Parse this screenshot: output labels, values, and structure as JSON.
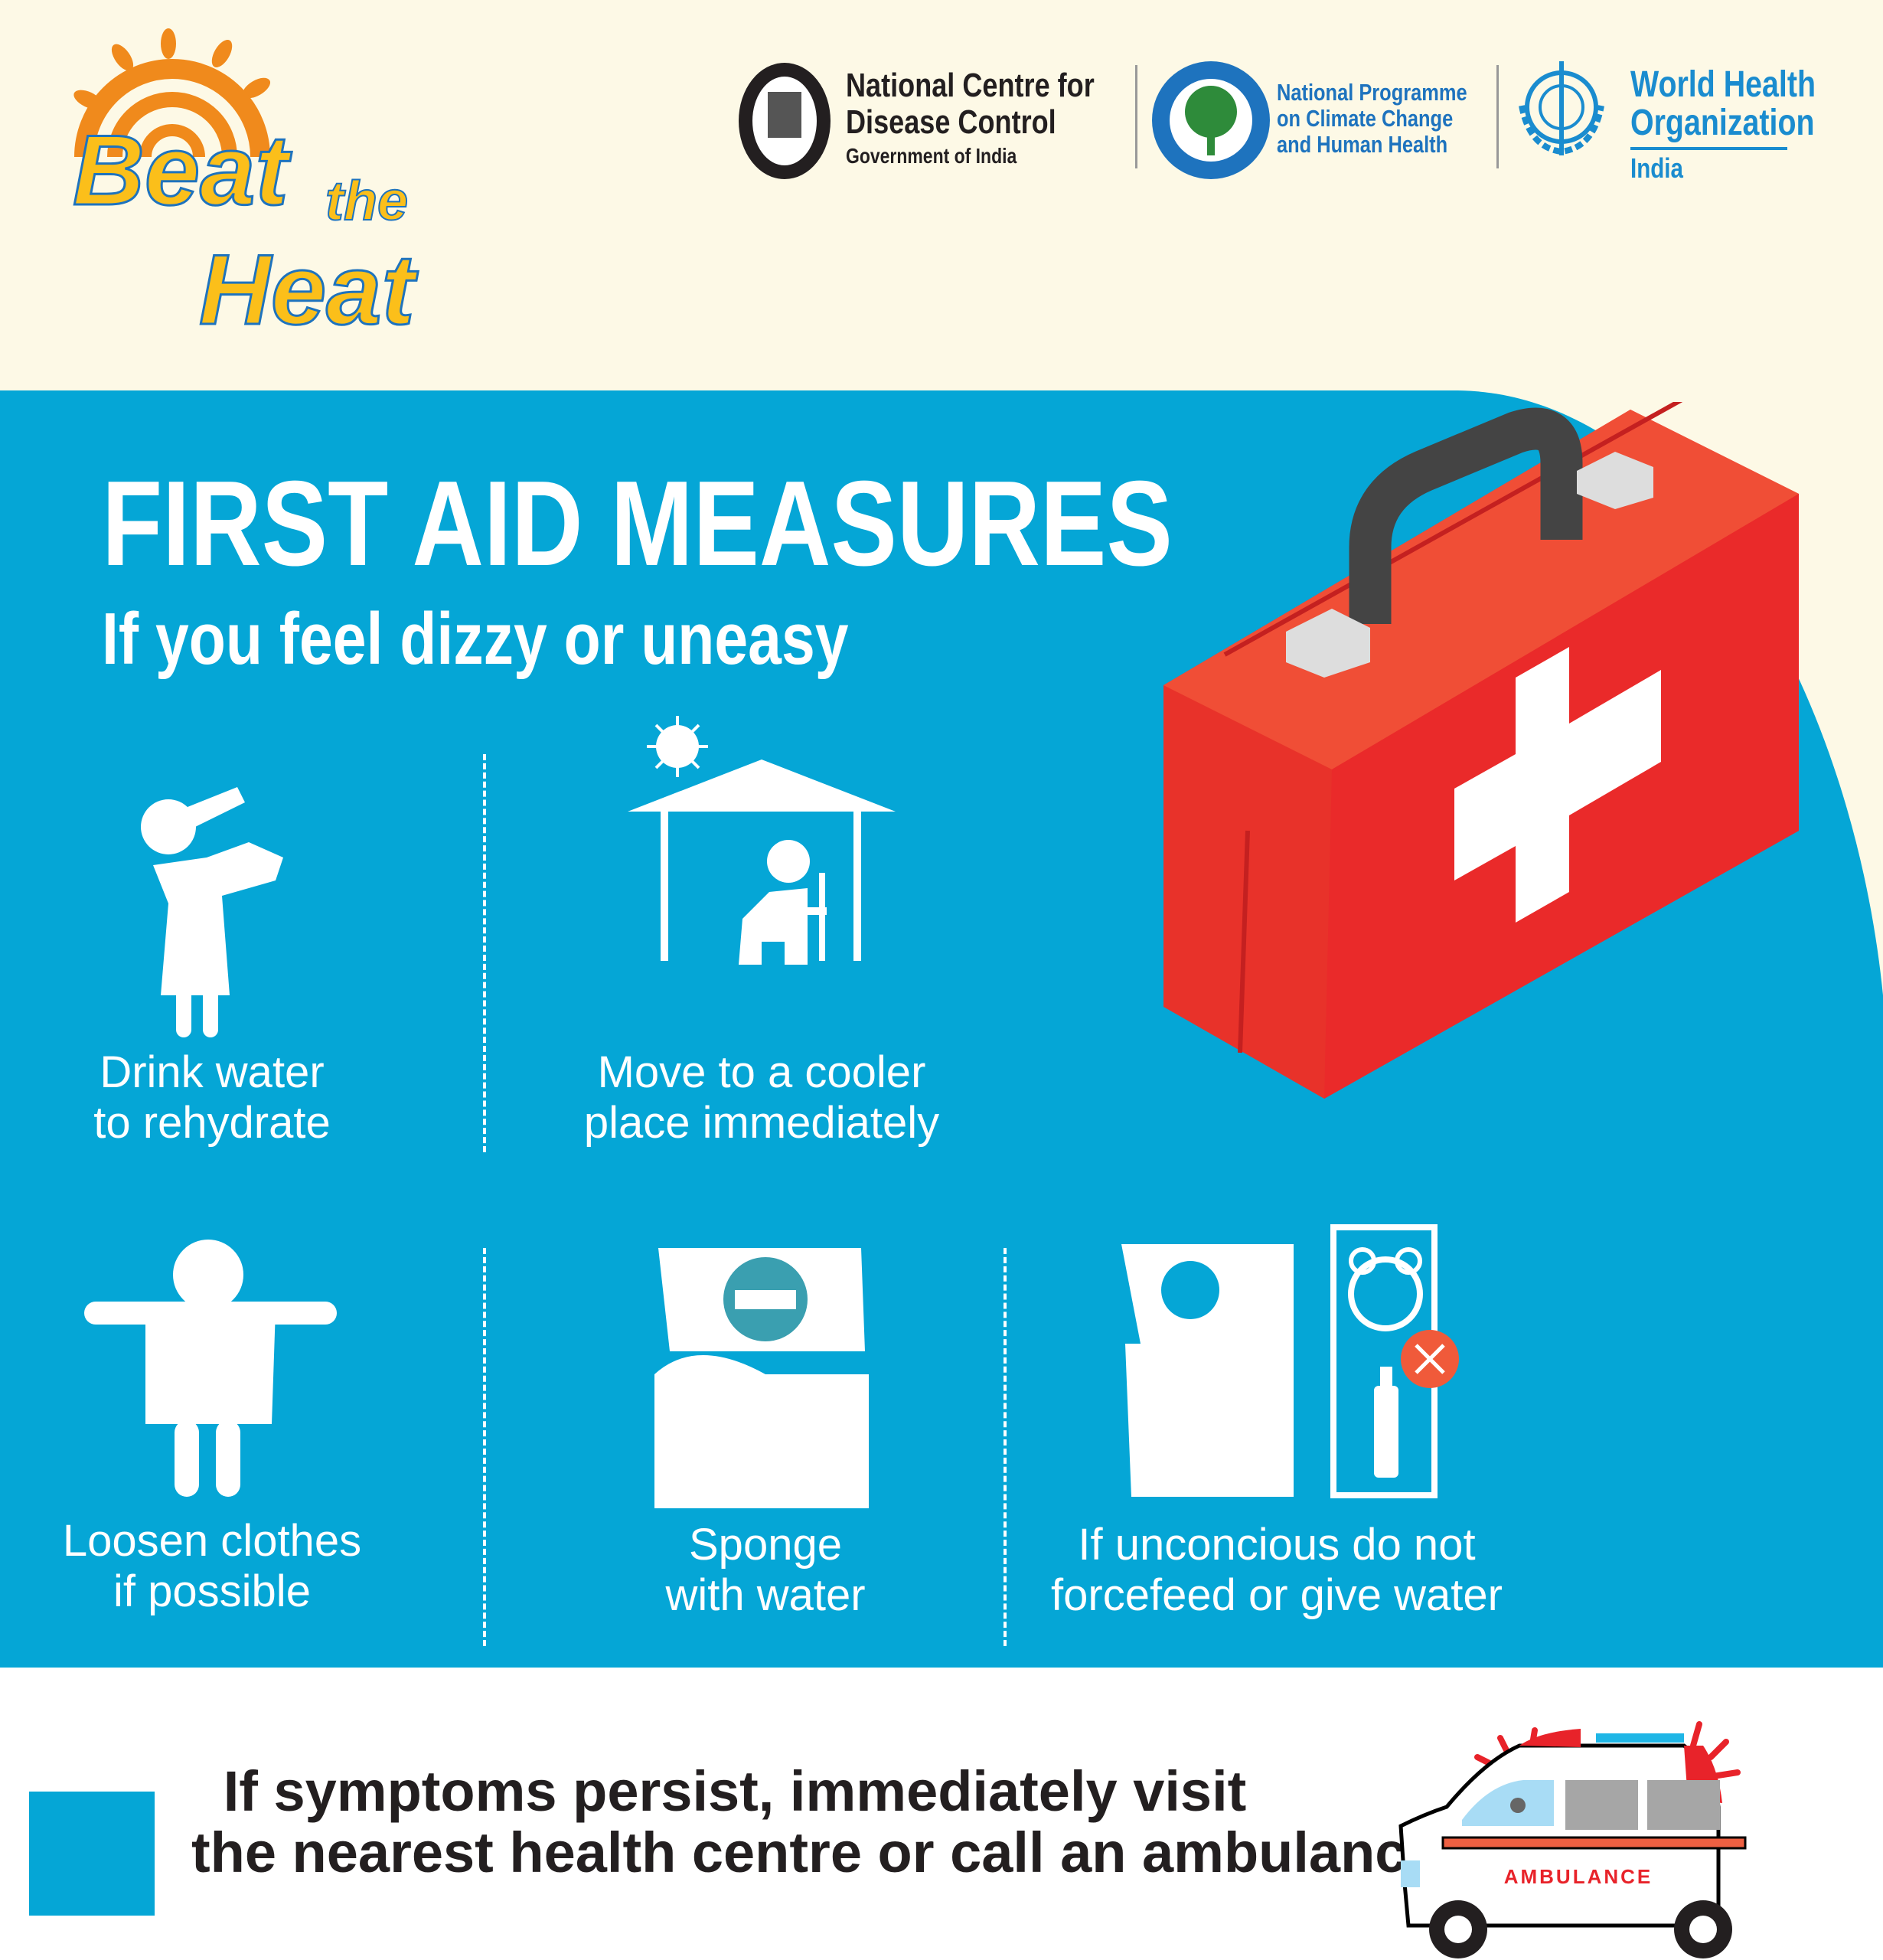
{
  "header": {
    "campaign_logo": {
      "word1": "Beat",
      "word2": "the",
      "word3": "Heat"
    },
    "ncdc": {
      "line1": "National Centre for",
      "line2": "Disease Control",
      "line3": "Government of India"
    },
    "npcchh": {
      "line1": "National Programme",
      "line2": "on Climate Change",
      "line3": "and Human Health"
    },
    "who": {
      "line1": "World Health",
      "line2": "Organization",
      "line3": "India"
    }
  },
  "main": {
    "title": "FIRST AID MEASURES",
    "subtitle": "If you feel dizzy or uneasy",
    "measures": [
      {
        "line1": "Drink water",
        "line2": "to rehydrate",
        "icon": "drinking-person-icon"
      },
      {
        "line1": "Move to a cooler",
        "line2": "place immediately",
        "icon": "shade-shelter-icon"
      },
      {
        "line1": "Loosen clothes",
        "line2": "if possible",
        "icon": "loose-clothes-person-icon"
      },
      {
        "line1": "Sponge",
        "line2": "with water",
        "icon": "sponge-bed-icon"
      },
      {
        "line1": "If unconcious do not",
        "line2": "forcefeed or give water",
        "icon": "no-water-icon"
      }
    ]
  },
  "footer": {
    "line1": "If symptoms persist, immediately visit",
    "line2": "the nearest health centre or call an ambulance",
    "ambulance_label": "AMBULANCE"
  },
  "colors": {
    "background": "#fdf9e6",
    "panel_blue": "#05a6d6",
    "kit_red": "#e8322a",
    "logo_orange": "#f08a1c",
    "logo_yellow": "#fbbf1a"
  }
}
